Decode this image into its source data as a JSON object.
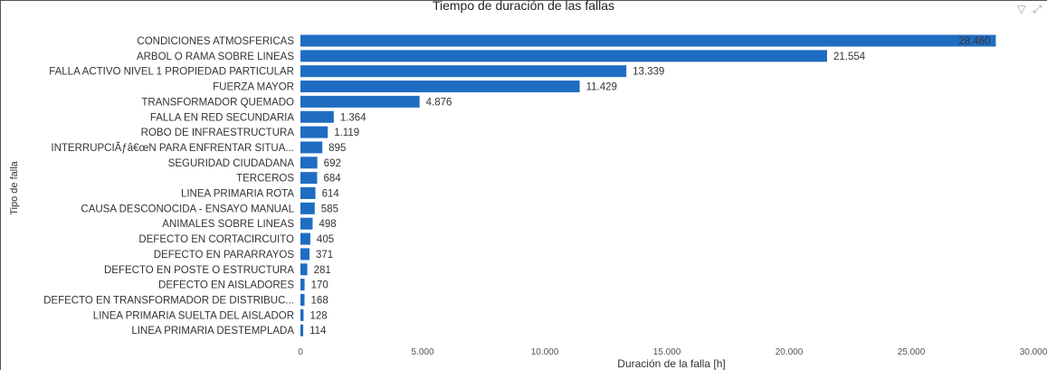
{
  "chart_data": {
    "type": "bar",
    "orientation": "horizontal",
    "title": "Tiempo de duración de las fallas",
    "xlabel": "Duración de la falla [h]",
    "ylabel": "Tipo de falla",
    "xlim": [
      0,
      30000
    ],
    "xticks": [
      0,
      5000,
      10000,
      15000,
      20000,
      25000,
      30000
    ],
    "xtick_labels": [
      "0",
      "5.000",
      "10.000",
      "15.000",
      "20.000",
      "25.000",
      "30.000"
    ],
    "grid": false,
    "legend": "none",
    "bar_color": "#1f6dc2",
    "categories": [
      "CONDICIONES ATMOSFERICAS",
      "ARBOL O RAMA SOBRE LINEAS",
      "FALLA ACTIVO NIVEL 1 PROPIEDAD PARTICULAR",
      "FUERZA MAYOR",
      "TRANSFORMADOR QUEMADO",
      "FALLA EN RED SECUNDARIA",
      "ROBO DE INFRAESTRUCTURA",
      "INTERRUPCIÃƒâ€œN PARA ENFRENTAR SITUA...",
      "SEGURIDAD CIUDADANA",
      "TERCEROS",
      "LINEA PRIMARIA ROTA",
      "CAUSA DESCONOCIDA - ENSAYO MANUAL",
      "ANIMALES SOBRE LINEAS",
      "DEFECTO EN CORTACIRCUITO",
      "DEFECTO EN PARARRAYOS",
      "DEFECTO EN POSTE O ESTRUCTURA",
      "DEFECTO EN AISLADORES",
      "DEFECTO EN TRANSFORMADOR DE DISTRIBUC...",
      "LINEA PRIMARIA SUELTA DEL AISLADOR",
      "LINEA PRIMARIA DESTEMPLADA"
    ],
    "values": [
      28460,
      21554,
      13339,
      11429,
      4876,
      1364,
      1119,
      895,
      692,
      684,
      614,
      585,
      498,
      405,
      371,
      281,
      170,
      168,
      128,
      114
    ],
    "value_labels": [
      "28.460",
      "21.554",
      "13.339",
      "11.429",
      "4.876",
      "1.364",
      "1.119",
      "895",
      "692",
      "684",
      "614",
      "585",
      "498",
      "405",
      "371",
      "281",
      "170",
      "168",
      "128",
      "114"
    ]
  },
  "icons": {
    "filter": "filter-icon",
    "expand": "focus-mode-icon"
  }
}
